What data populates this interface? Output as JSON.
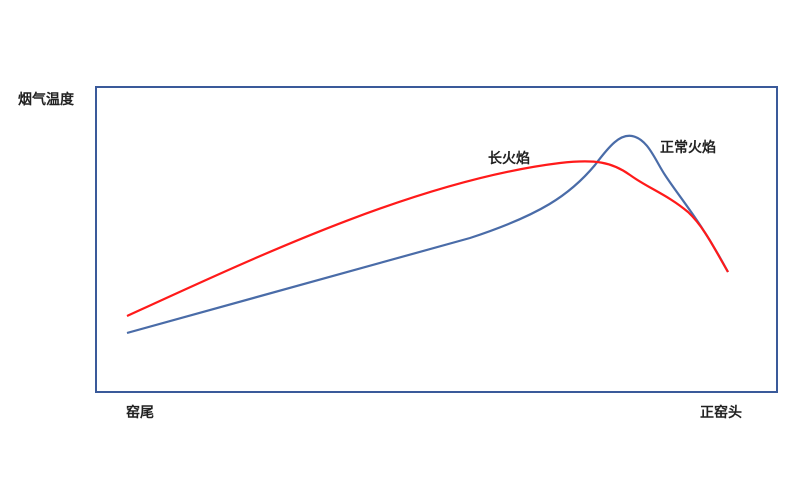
{
  "diagram": {
    "y_axis_label": "烟气温度",
    "x_start_label": "窑尾",
    "x_end_label": "正窑头",
    "curves": [
      {
        "label": "长火焰",
        "color": "#ff1a1a"
      },
      {
        "label": "正常火焰",
        "color": "#4a6ca8"
      }
    ],
    "frame_color": "#3a5a9a"
  }
}
